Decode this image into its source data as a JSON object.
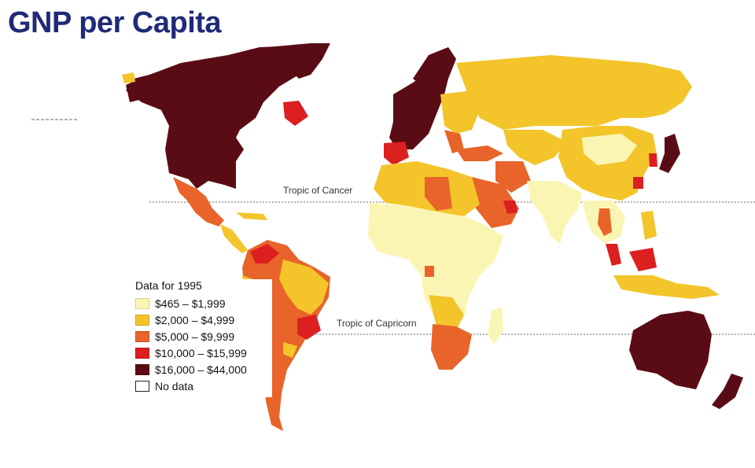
{
  "title": "GNP per Capita",
  "tropics": {
    "cancer": "Tropic of Cancer",
    "capricorn": "Tropic of Capricorn"
  },
  "legend": {
    "title": "Data for 1995",
    "items": [
      {
        "label": "$465 – $1,999",
        "color": "#fbf5b4"
      },
      {
        "label": "$2,000 – $4,999",
        "color": "#f3c52a"
      },
      {
        "label": "$5,000 – $9,999",
        "color": "#e8642a"
      },
      {
        "label": "$10,000 – $15,999",
        "color": "#dc1f1f"
      },
      {
        "label": "$16,000 – $44,000",
        "color": "#5a0c14"
      },
      {
        "label": "No data",
        "color": "#ffffff"
      }
    ]
  }
}
